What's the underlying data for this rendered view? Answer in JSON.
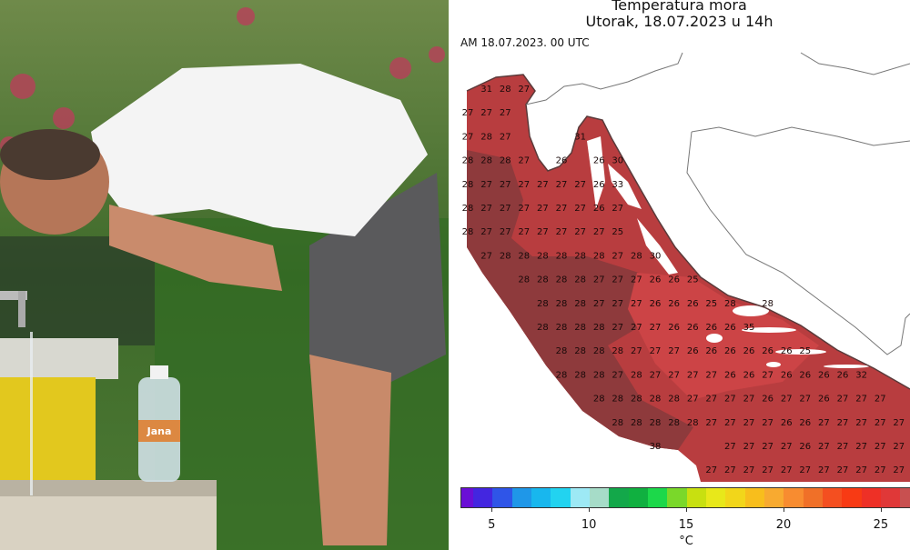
{
  "photo": {
    "bottle_label": "Jana"
  },
  "map": {
    "title": "Temperatura mora",
    "subtitle": "Utorak, 18.07.2023 u 14h",
    "run_label": "AM 18.07.2023. 00 UTC",
    "sea_colors": {
      "warm_28": "#8e3a3c",
      "warm_27": "#b83d3f",
      "warm_26": "#cc4446",
      "land": "#ffffff",
      "border": "#777777"
    },
    "grid_values": [
      [
        null,
        31,
        28,
        27,
        null,
        null,
        null,
        null,
        null,
        null,
        null,
        null,
        null,
        null,
        null,
        null,
        null,
        null,
        null,
        null,
        null,
        null,
        null,
        null
      ],
      [
        27,
        27,
        27,
        null,
        null,
        null,
        null,
        null,
        null,
        null,
        null,
        null,
        null,
        null,
        null,
        null,
        null,
        null,
        null,
        null,
        null,
        null,
        null,
        null
      ],
      [
        27,
        28,
        27,
        null,
        null,
        null,
        31,
        null,
        null,
        null,
        null,
        null,
        null,
        null,
        null,
        null,
        null,
        null,
        null,
        null,
        null,
        null,
        null,
        null
      ],
      [
        28,
        28,
        28,
        27,
        null,
        26,
        null,
        26,
        30,
        null,
        null,
        null,
        null,
        null,
        null,
        null,
        null,
        null,
        null,
        null,
        null,
        null,
        null,
        null
      ],
      [
        28,
        27,
        27,
        27,
        27,
        27,
        27,
        26,
        33,
        null,
        null,
        null,
        null,
        null,
        null,
        null,
        null,
        null,
        null,
        null,
        null,
        null,
        null,
        null
      ],
      [
        28,
        27,
        27,
        27,
        27,
        27,
        27,
        26,
        27,
        null,
        null,
        null,
        null,
        null,
        null,
        null,
        null,
        null,
        null,
        null,
        null,
        null,
        null,
        null
      ],
      [
        28,
        27,
        27,
        27,
        27,
        27,
        27,
        27,
        25,
        null,
        null,
        null,
        null,
        null,
        null,
        null,
        null,
        null,
        null,
        null,
        null,
        null,
        null,
        null
      ],
      [
        null,
        27,
        28,
        28,
        28,
        28,
        28,
        28,
        27,
        28,
        30,
        null,
        null,
        null,
        null,
        null,
        null,
        null,
        null,
        null,
        null,
        null,
        null,
        null
      ],
      [
        null,
        null,
        null,
        28,
        28,
        28,
        28,
        27,
        27,
        27,
        26,
        26,
        25,
        null,
        null,
        null,
        null,
        null,
        null,
        null,
        null,
        null,
        null,
        null
      ],
      [
        null,
        null,
        null,
        null,
        28,
        28,
        28,
        27,
        27,
        27,
        26,
        26,
        26,
        25,
        28,
        null,
        28,
        null,
        null,
        null,
        null,
        null,
        null,
        null
      ],
      [
        null,
        null,
        null,
        null,
        28,
        28,
        28,
        28,
        27,
        27,
        27,
        26,
        26,
        26,
        26,
        35,
        null,
        null,
        null,
        null,
        null,
        null,
        null,
        null
      ],
      [
        null,
        null,
        null,
        null,
        null,
        28,
        28,
        28,
        28,
        27,
        27,
        27,
        26,
        26,
        26,
        26,
        26,
        26,
        25,
        null,
        null,
        null,
        null,
        null
      ],
      [
        null,
        null,
        null,
        null,
        null,
        28,
        28,
        28,
        27,
        28,
        27,
        27,
        27,
        27,
        26,
        26,
        27,
        26,
        26,
        26,
        26,
        32,
        null,
        null
      ],
      [
        null,
        null,
        null,
        null,
        null,
        null,
        null,
        28,
        28,
        28,
        28,
        28,
        27,
        27,
        27,
        27,
        26,
        27,
        27,
        26,
        27,
        27,
        27,
        null
      ],
      [
        null,
        null,
        null,
        null,
        null,
        null,
        null,
        null,
        28,
        28,
        28,
        28,
        28,
        27,
        27,
        27,
        27,
        26,
        26,
        27,
        27,
        27,
        27,
        27
      ],
      [
        null,
        null,
        null,
        null,
        null,
        null,
        null,
        null,
        null,
        null,
        38,
        null,
        null,
        null,
        27,
        27,
        27,
        27,
        26,
        27,
        27,
        27,
        27,
        27
      ],
      [
        null,
        null,
        null,
        null,
        null,
        null,
        null,
        null,
        null,
        null,
        null,
        null,
        null,
        27,
        27,
        27,
        27,
        27,
        27,
        27,
        27,
        27,
        27,
        27
      ]
    ],
    "colorbar": {
      "unit": "°C",
      "ticks": [
        5,
        10,
        15,
        20,
        25
      ],
      "range": [
        3.4,
        26.5
      ],
      "bins": [
        {
          "from": 3,
          "color": "#6a0fd6"
        },
        {
          "from": 4,
          "color": "#4326e0"
        },
        {
          "from": 5,
          "color": "#2f55e8"
        },
        {
          "from": 6,
          "color": "#1f97e8"
        },
        {
          "from": 7,
          "color": "#18b7ee"
        },
        {
          "from": 8,
          "color": "#22d3f0"
        },
        {
          "from": 9,
          "color": "#9de9f5"
        },
        {
          "from": 10,
          "color": "#a6dcc8"
        },
        {
          "from": 11,
          "color": "#13a84a"
        },
        {
          "from": 12,
          "color": "#10b040"
        },
        {
          "from": 13,
          "color": "#1cd84a"
        },
        {
          "from": 14,
          "color": "#7ad82a"
        },
        {
          "from": 15,
          "color": "#c8e010"
        },
        {
          "from": 16,
          "color": "#e8e81a"
        },
        {
          "from": 17,
          "color": "#f2d61a"
        },
        {
          "from": 18,
          "color": "#f8be1c"
        },
        {
          "from": 19,
          "color": "#f8aa30"
        },
        {
          "from": 20,
          "color": "#f88c30"
        },
        {
          "from": 21,
          "color": "#f07028"
        },
        {
          "from": 22,
          "color": "#f44f20"
        },
        {
          "from": 23,
          "color": "#f83a14"
        },
        {
          "from": 24,
          "color": "#ee3026"
        },
        {
          "from": 25,
          "color": "#e03838"
        },
        {
          "from": 26,
          "color": "#c85050"
        }
      ]
    }
  }
}
